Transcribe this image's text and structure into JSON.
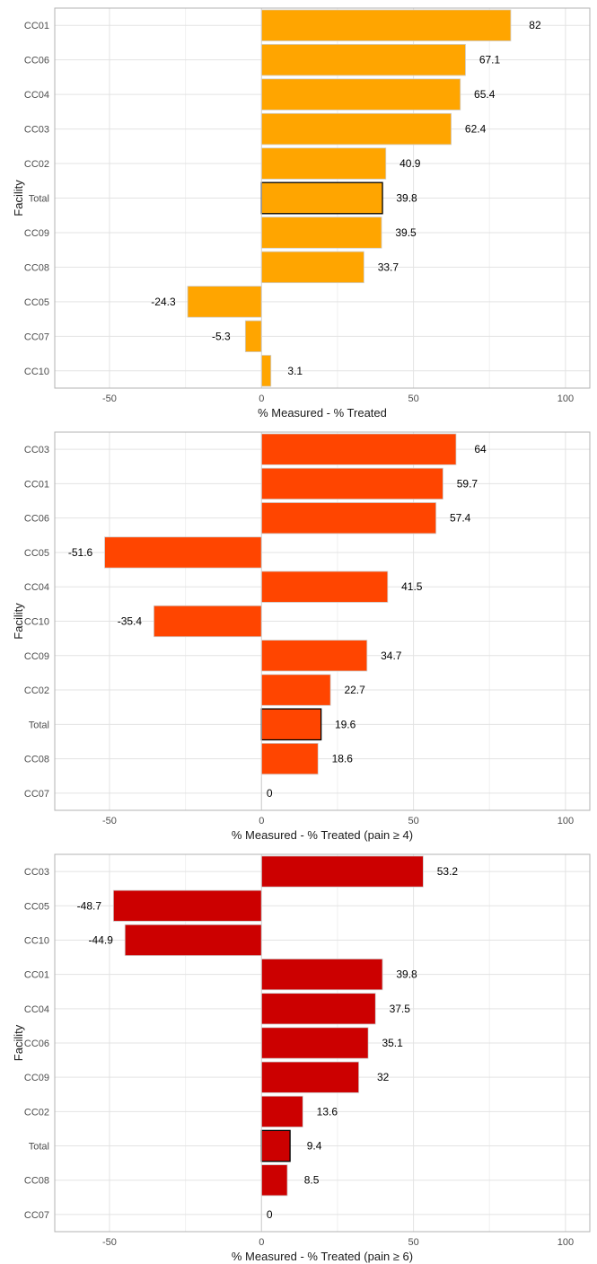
{
  "chart_data": [
    {
      "type": "bar",
      "orientation": "horizontal",
      "title": "",
      "xlabel": "% Measured - % Treated",
      "ylabel": "Facility",
      "xlim": [
        -68,
        108
      ],
      "xticks": [
        -50,
        0,
        50,
        100
      ],
      "grid": true,
      "legend": "none",
      "bar_color": "#FFA500",
      "highlight_category": "Total",
      "categories": [
        "CC01",
        "CC06",
        "CC04",
        "CC03",
        "CC02",
        "Total",
        "CC09",
        "CC08",
        "CC05",
        "CC07",
        "CC10"
      ],
      "values": [
        82,
        67.1,
        65.4,
        62.4,
        40.9,
        39.8,
        39.5,
        33.7,
        -24.3,
        -5.3,
        3.1
      ]
    },
    {
      "type": "bar",
      "orientation": "horizontal",
      "title": "",
      "xlabel": "% Measured - % Treated (pain ≥ 4)",
      "ylabel": "Facility",
      "xlim": [
        -68,
        108
      ],
      "xticks": [
        -50,
        0,
        50,
        100
      ],
      "grid": true,
      "legend": "none",
      "bar_color": "#FF4500",
      "highlight_category": "Total",
      "categories": [
        "CC03",
        "CC01",
        "CC06",
        "CC05",
        "CC04",
        "CC10",
        "CC09",
        "CC02",
        "Total",
        "CC08",
        "CC07"
      ],
      "values": [
        64,
        59.7,
        57.4,
        -51.6,
        41.5,
        -35.4,
        34.7,
        22.7,
        19.6,
        18.6,
        0
      ]
    },
    {
      "type": "bar",
      "orientation": "horizontal",
      "title": "",
      "xlabel": "% Measured - % Treated (pain ≥ 6)",
      "ylabel": "Facility",
      "xlim": [
        -68,
        108
      ],
      "xticks": [
        -50,
        0,
        50,
        100
      ],
      "grid": true,
      "legend": "none",
      "bar_color": "#CC0000",
      "highlight_category": "Total",
      "categories": [
        "CC03",
        "CC05",
        "CC10",
        "CC01",
        "CC04",
        "CC06",
        "CC09",
        "CC02",
        "Total",
        "CC08",
        "CC07"
      ],
      "values": [
        53.2,
        -48.7,
        -44.9,
        39.8,
        37.5,
        35.1,
        32,
        13.6,
        9.4,
        8.5,
        0
      ]
    }
  ]
}
